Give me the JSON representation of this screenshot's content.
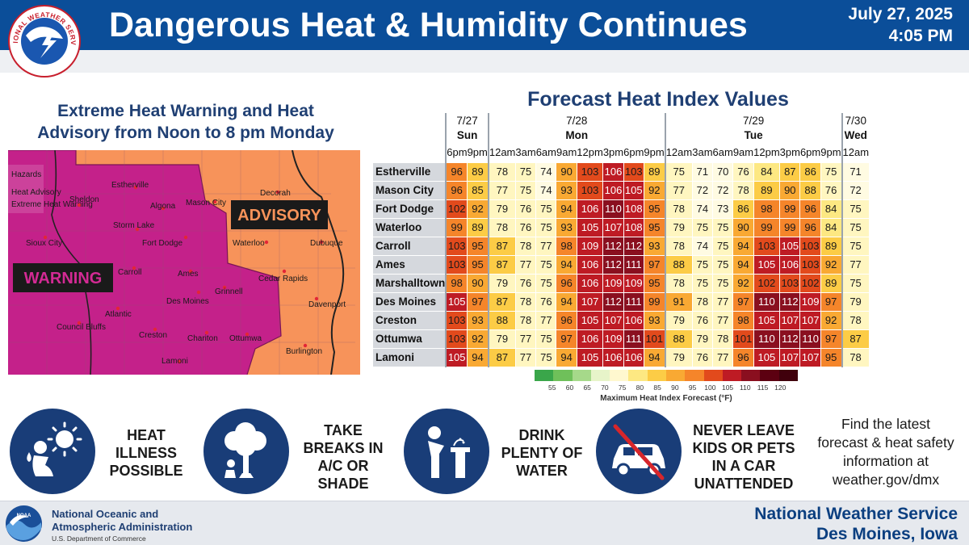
{
  "header": {
    "title": "Dangerous Heat & Humidity Continues",
    "date": "July 27, 2025",
    "time": "4:05 PM",
    "logo_text": "NATIONAL WEATHER SERVICE"
  },
  "map": {
    "title_line1": "Extreme Heat Warning and Heat",
    "title_line2": "Advisory from Noon to 8 pm Monday",
    "legend_items": [
      "Hazards",
      "Heat Advisory",
      "Extreme Heat Warning"
    ],
    "labels": {
      "warning": "WARNING",
      "advisory": "ADVISORY"
    },
    "cities": [
      "Estherville",
      "Sheldon",
      "Algona",
      "Mason City",
      "Decorah",
      "Storm Lake",
      "Fort Dodge",
      "Waterloo",
      "Dubuque",
      "Sioux City",
      "Carroll",
      "Ames",
      "Cedar Rapids",
      "Grinnell",
      "Des Moines",
      "Atlantic",
      "Davenport",
      "Council Bluffs",
      "Creston",
      "Chariton",
      "Ottumwa",
      "Burlington",
      "Lamoni"
    ],
    "colors": {
      "warning": "#c4218a",
      "advisory": "#f7935a"
    }
  },
  "table": {
    "title": "Forecast Heat Index Values",
    "dates": [
      "7/27",
      "7/28",
      "7/29",
      "7/30"
    ],
    "days": [
      "Sun",
      "Mon",
      "Tue",
      "Wed"
    ],
    "hours": [
      "6pm",
      "9pm",
      "12am",
      "3am",
      "6am",
      "9am",
      "12pm",
      "3pm",
      "6pm",
      "9pm",
      "12am",
      "3am",
      "6am",
      "9am",
      "12pm",
      "3pm",
      "6pm",
      "9pm",
      "12am"
    ],
    "rows": [
      {
        "city": "Estherville",
        "values": [
          96,
          89,
          78,
          75,
          74,
          90,
          103,
          106,
          103,
          89,
          75,
          71,
          70,
          76,
          84,
          87,
          86,
          75,
          71
        ]
      },
      {
        "city": "Mason City",
        "values": [
          96,
          85,
          77,
          75,
          74,
          93,
          103,
          106,
          105,
          92,
          77,
          72,
          72,
          78,
          89,
          90,
          88,
          76,
          72
        ]
      },
      {
        "city": "Fort Dodge",
        "values": [
          102,
          92,
          79,
          76,
          75,
          94,
          106,
          110,
          108,
          95,
          78,
          74,
          73,
          86,
          98,
          99,
          96,
          84,
          75
        ]
      },
      {
        "city": "Waterloo",
        "values": [
          99,
          89,
          78,
          76,
          75,
          93,
          105,
          107,
          108,
          95,
          79,
          75,
          75,
          90,
          99,
          99,
          96,
          84,
          75
        ]
      },
      {
        "city": "Carroll",
        "values": [
          103,
          95,
          87,
          78,
          77,
          98,
          109,
          112,
          112,
          93,
          78,
          74,
          75,
          94,
          103,
          105,
          103,
          89,
          75
        ]
      },
      {
        "city": "Ames",
        "values": [
          103,
          95,
          87,
          77,
          75,
          94,
          106,
          112,
          111,
          97,
          88,
          75,
          75,
          94,
          105,
          106,
          103,
          92,
          77
        ]
      },
      {
        "city": "Marshalltown",
        "values": [
          98,
          90,
          79,
          76,
          75,
          96,
          106,
          109,
          109,
          95,
          78,
          75,
          75,
          92,
          102,
          103,
          102,
          89,
          75
        ]
      },
      {
        "city": "Des Moines",
        "values": [
          105,
          97,
          87,
          78,
          76,
          94,
          107,
          112,
          111,
          99,
          91,
          78,
          77,
          97,
          110,
          112,
          109,
          97,
          79
        ]
      },
      {
        "city": "Creston",
        "values": [
          103,
          93,
          88,
          78,
          77,
          96,
          105,
          107,
          106,
          93,
          79,
          76,
          77,
          98,
          105,
          107,
          107,
          92,
          78
        ]
      },
      {
        "city": "Ottumwa",
        "values": [
          103,
          92,
          79,
          77,
          75,
          97,
          106,
          109,
          111,
          101,
          88,
          79,
          78,
          101,
          110,
          112,
          110,
          97,
          87
        ]
      },
      {
        "city": "Lamoni",
        "values": [
          105,
          94,
          87,
          77,
          75,
          94,
          105,
          106,
          106,
          94,
          79,
          76,
          77,
          96,
          105,
          107,
          107,
          95,
          78
        ]
      }
    ],
    "legend": {
      "ticks": [
        "55",
        "60",
        "65",
        "70",
        "75",
        "80",
        "85",
        "90",
        "95",
        "100",
        "105",
        "110",
        "115",
        "120"
      ],
      "label": "Maximum Heat Index Forecast (°F)"
    }
  },
  "safety": {
    "tips": [
      {
        "icon": "heat-illness-icon",
        "line1": "HEAT",
        "line2": "ILLNESS",
        "line3": "POSSIBLE",
        "line4": ""
      },
      {
        "icon": "shade-tree-icon",
        "line1": "TAKE",
        "line2": "BREAKS IN",
        "line3": "A/C OR",
        "line4": "SHADE"
      },
      {
        "icon": "water-fountain-icon",
        "line1": "DRINK",
        "line2": "PLENTY OF",
        "line3": "WATER",
        "line4": ""
      },
      {
        "icon": "no-car-icon",
        "line1": "NEVER LEAVE",
        "line2": "KIDS OR PETS",
        "line3": "IN A CAR",
        "line4": "UNATTENDED"
      }
    ],
    "find_line1": "Find the latest",
    "find_line2": "forecast & heat safety",
    "find_line3": "information at",
    "find_line4": "weather.gov/dmx"
  },
  "footer": {
    "noaa_line1": "National Oceanic and",
    "noaa_line2": "Atmospheric Administration",
    "noaa_dept": "U.S. Department of Commerce",
    "noaa_logo_text": "NOAA",
    "office_line1": "National Weather Service",
    "office_line2": "Des Moines, Iowa"
  }
}
